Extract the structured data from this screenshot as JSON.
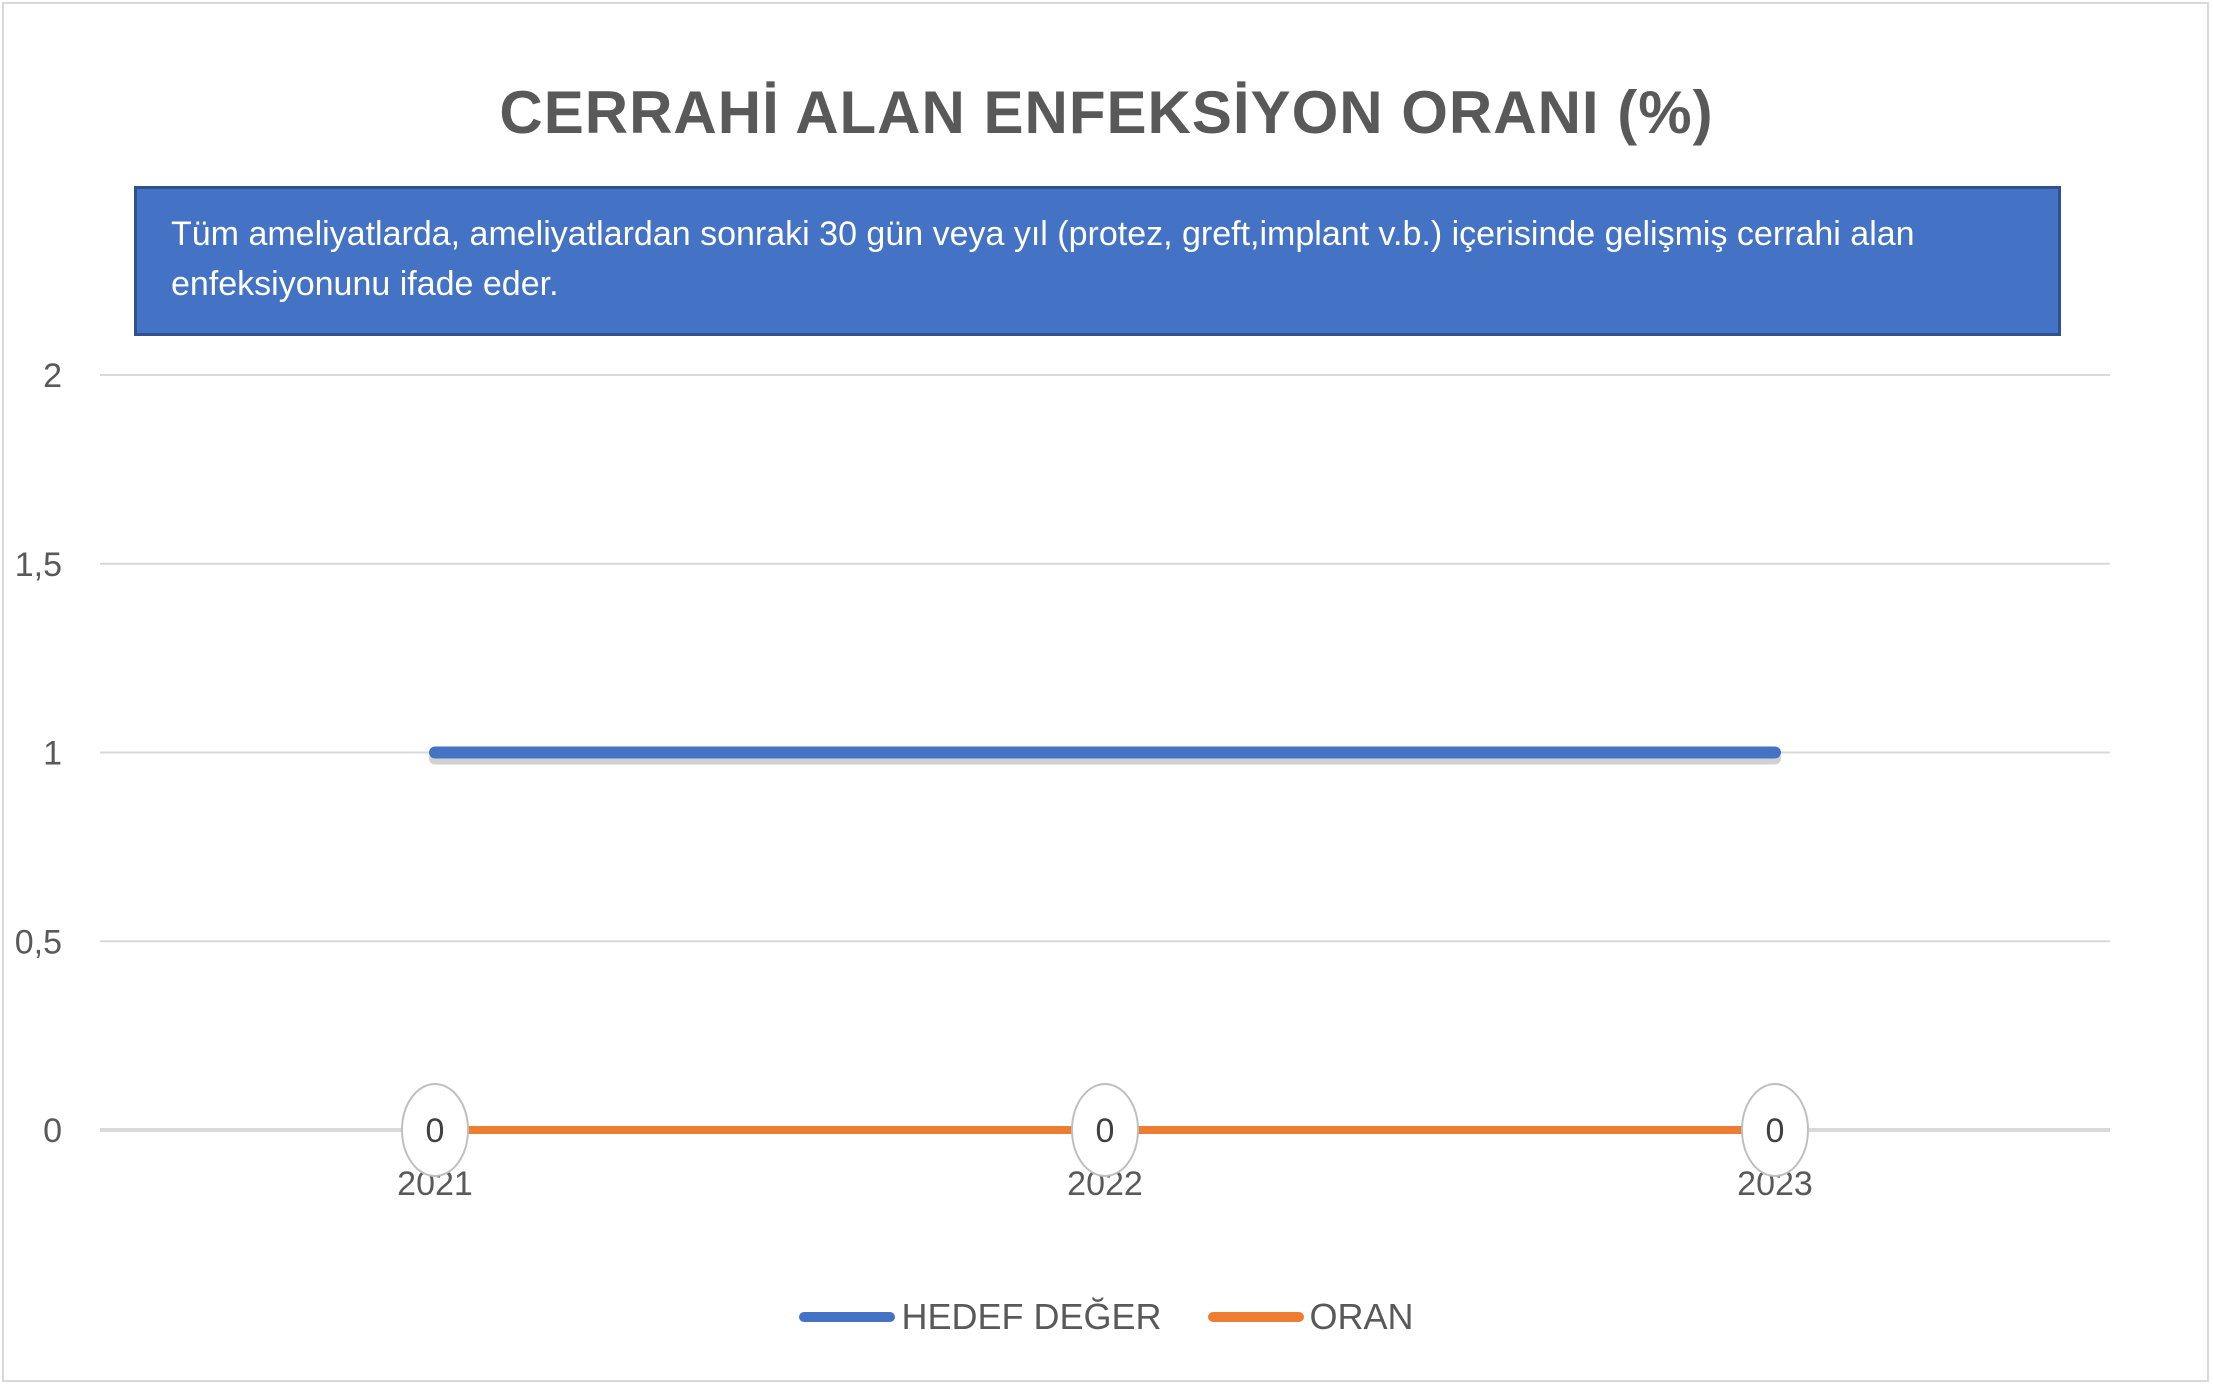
{
  "chart_data": {
    "type": "line",
    "title": "CERRAHİ ALAN ENFEKSİYON ORANI (%)",
    "description": "Tüm ameliyatlarda, ameliyatlardan sonraki 30 gün veya  yıl (protez, greft,implant v.b.) içerisinde gelişmiş cerrahi alan enfeksiyonunu ifade eder.",
    "categories": [
      "2021",
      "2022",
      "2023"
    ],
    "series": [
      {
        "name": "HEDEF DEĞER",
        "values": [
          1,
          1,
          1
        ],
        "color": "#4472c4",
        "data_labels": false
      },
      {
        "name": "ORAN",
        "values": [
          0,
          0,
          0
        ],
        "color": "#ed7d31",
        "data_labels": true
      }
    ],
    "ylim": [
      0,
      2
    ],
    "yticks": [
      0,
      0.5,
      1,
      1.5,
      2
    ],
    "ytick_labels": [
      "0",
      "0,5",
      "1",
      "1,5",
      "2"
    ],
    "grid": true,
    "legend_position": "bottom",
    "colors": {
      "gridline": "#d9d9d9",
      "text": "#595959",
      "banner": "#4472c4"
    }
  }
}
